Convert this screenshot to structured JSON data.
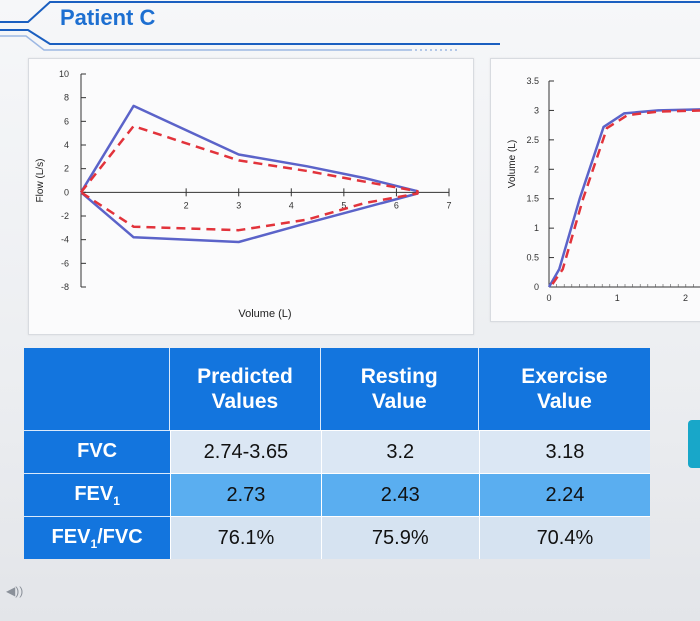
{
  "slide": {
    "title": "Patient C"
  },
  "chart_data": [
    {
      "type": "line",
      "title": "",
      "xlabel": "Volume (L)",
      "ylabel": "Flow (L/s)",
      "xlim": [
        0,
        7
      ],
      "ylim": [
        -8,
        10
      ],
      "x_ticks": [
        "2",
        "3",
        "4",
        "5",
        "6",
        "7"
      ],
      "y_ticks": [
        "10",
        "8",
        "6",
        "4",
        "2",
        "0",
        "-2",
        "-4",
        "-6",
        "-8"
      ],
      "series": [
        {
          "style": "solid",
          "color": "#5b63c9",
          "points": [
            [
              0,
              0
            ],
            [
              1,
              7.3
            ],
            [
              3,
              3.2
            ],
            [
              4.3,
              2.2
            ],
            [
              5.4,
              1.2
            ],
            [
              6.4,
              0.1
            ],
            [
              6.4,
              -0.1
            ],
            [
              4.3,
              -2.6
            ],
            [
              3,
              -4.2
            ],
            [
              1,
              -3.8
            ],
            [
              0,
              0
            ]
          ]
        },
        {
          "style": "dashed",
          "color": "#e2333b",
          "points": [
            [
              0,
              0
            ],
            [
              1,
              5.6
            ],
            [
              3,
              2.7
            ],
            [
              4.3,
              1.8
            ],
            [
              5.4,
              0.9
            ],
            [
              6.4,
              0.1
            ],
            [
              6.4,
              -0.1
            ],
            [
              5.4,
              -0.9
            ],
            [
              4.3,
              -2.3
            ],
            [
              3,
              -3.2
            ],
            [
              1,
              -2.9
            ],
            [
              0,
              0
            ]
          ]
        }
      ]
    },
    {
      "type": "line",
      "title": "",
      "xlabel": "",
      "ylabel": "Volume (L)",
      "xlim": [
        0,
        2.3
      ],
      "ylim": [
        0,
        3.5
      ],
      "x_ticks": [
        "0",
        "1",
        "2"
      ],
      "y_ticks": [
        "3.5",
        "3",
        "2.5",
        "2",
        "1.5",
        "1",
        "0.5",
        "0"
      ],
      "series": [
        {
          "style": "solid",
          "color": "#5b63c9",
          "points": [
            [
              0,
              0
            ],
            [
              0.15,
              0.3
            ],
            [
              0.45,
              1.5
            ],
            [
              0.8,
              2.72
            ],
            [
              1.1,
              2.95
            ],
            [
              1.6,
              3.0
            ],
            [
              2.3,
              3.02
            ]
          ]
        },
        {
          "style": "dashed",
          "color": "#e2333b",
          "points": [
            [
              0.05,
              0.05
            ],
            [
              0.2,
              0.3
            ],
            [
              0.5,
              1.5
            ],
            [
              0.85,
              2.7
            ],
            [
              1.15,
              2.92
            ],
            [
              1.6,
              2.98
            ],
            [
              2.3,
              3.0
            ]
          ]
        }
      ]
    },
    {
      "type": "table",
      "headers": [
        "",
        "Predicted Values",
        "Resting Value",
        "Exercise Value"
      ],
      "rows": [
        {
          "label": "FVC",
          "label_sub": "",
          "label_tail": "",
          "values": [
            "2.74-3.65",
            "3.2",
            "3.18"
          ]
        },
        {
          "label": "FEV",
          "label_sub": "1",
          "label_tail": "",
          "values": [
            "2.73",
            "2.43",
            "2.24"
          ]
        },
        {
          "label": "FEV",
          "label_sub": "1",
          "label_tail": "/FVC",
          "values": [
            "76.1%",
            "75.9%",
            "70.4%"
          ]
        }
      ]
    }
  ]
}
